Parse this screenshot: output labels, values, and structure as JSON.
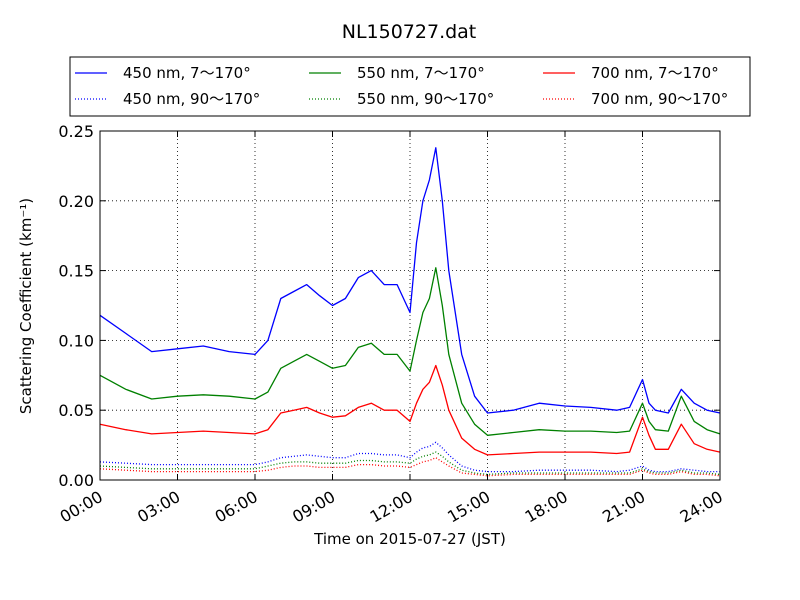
{
  "chart_data": {
    "type": "line",
    "title": "NL150727.dat",
    "xlabel": "Time on 2015-07-27 (JST)",
    "ylabel": "Scattering Coefficient (km⁻¹)",
    "xlim": [
      "00:00",
      "24:00"
    ],
    "ylim": [
      0.0,
      0.25
    ],
    "grid": true,
    "legend_position": "top",
    "x_ticks": [
      "00:00",
      "03:00",
      "06:00",
      "09:00",
      "12:00",
      "15:00",
      "18:00",
      "21:00",
      "24:00"
    ],
    "y_ticks": [
      "0.00",
      "0.05",
      "0.10",
      "0.15",
      "0.20",
      "0.25"
    ],
    "x": [
      "00:00",
      "01:00",
      "02:00",
      "03:00",
      "04:00",
      "05:00",
      "06:00",
      "06:30",
      "07:00",
      "07:30",
      "08:00",
      "08:30",
      "09:00",
      "09:30",
      "10:00",
      "10:30",
      "11:00",
      "11:30",
      "12:00",
      "12:15",
      "12:30",
      "12:45",
      "13:00",
      "13:15",
      "13:30",
      "14:00",
      "14:30",
      "15:00",
      "16:00",
      "17:00",
      "18:00",
      "19:00",
      "20:00",
      "20:30",
      "21:00",
      "21:15",
      "21:30",
      "22:00",
      "22:30",
      "23:00",
      "23:30",
      "24:00"
    ],
    "series": [
      {
        "name": "450 nm, 7～170°",
        "color": "#0000ff",
        "style": "solid",
        "values": [
          0.118,
          0.105,
          0.092,
          0.094,
          0.096,
          0.092,
          0.09,
          0.1,
          0.13,
          0.135,
          0.14,
          0.132,
          0.125,
          0.13,
          0.145,
          0.15,
          0.14,
          0.14,
          0.12,
          0.17,
          0.2,
          0.215,
          0.238,
          0.2,
          0.15,
          0.09,
          0.06,
          0.048,
          0.05,
          0.055,
          0.053,
          0.052,
          0.05,
          0.052,
          0.072,
          0.055,
          0.05,
          0.048,
          0.065,
          0.055,
          0.05,
          0.048
        ]
      },
      {
        "name": "450 nm, 90～170°",
        "color": "#0000ff",
        "style": "dotted",
        "values": [
          0.013,
          0.012,
          0.011,
          0.011,
          0.011,
          0.011,
          0.011,
          0.013,
          0.016,
          0.017,
          0.018,
          0.017,
          0.016,
          0.016,
          0.019,
          0.019,
          0.018,
          0.018,
          0.016,
          0.02,
          0.023,
          0.024,
          0.027,
          0.023,
          0.018,
          0.01,
          0.007,
          0.006,
          0.006,
          0.007,
          0.007,
          0.007,
          0.006,
          0.007,
          0.01,
          0.007,
          0.006,
          0.006,
          0.008,
          0.007,
          0.006,
          0.006
        ]
      },
      {
        "name": "550 nm, 7～170°",
        "color": "#008000",
        "style": "solid",
        "values": [
          0.075,
          0.065,
          0.058,
          0.06,
          0.061,
          0.06,
          0.058,
          0.063,
          0.08,
          0.085,
          0.09,
          0.085,
          0.08,
          0.082,
          0.095,
          0.098,
          0.09,
          0.09,
          0.078,
          0.1,
          0.12,
          0.13,
          0.152,
          0.125,
          0.09,
          0.055,
          0.04,
          0.032,
          0.034,
          0.036,
          0.035,
          0.035,
          0.034,
          0.035,
          0.055,
          0.042,
          0.036,
          0.035,
          0.06,
          0.042,
          0.036,
          0.033
        ]
      },
      {
        "name": "550 nm, 90～170°",
        "color": "#008000",
        "style": "dotted",
        "values": [
          0.01,
          0.009,
          0.008,
          0.008,
          0.008,
          0.008,
          0.008,
          0.01,
          0.012,
          0.013,
          0.013,
          0.012,
          0.012,
          0.012,
          0.014,
          0.014,
          0.013,
          0.013,
          0.012,
          0.015,
          0.017,
          0.018,
          0.02,
          0.017,
          0.013,
          0.007,
          0.005,
          0.004,
          0.005,
          0.005,
          0.005,
          0.005,
          0.005,
          0.005,
          0.008,
          0.006,
          0.005,
          0.005,
          0.007,
          0.005,
          0.005,
          0.004
        ]
      },
      {
        "name": "700 nm, 7～170°",
        "color": "#ff0000",
        "style": "solid",
        "values": [
          0.04,
          0.036,
          0.033,
          0.034,
          0.035,
          0.034,
          0.033,
          0.036,
          0.048,
          0.05,
          0.052,
          0.048,
          0.045,
          0.046,
          0.052,
          0.055,
          0.05,
          0.05,
          0.042,
          0.055,
          0.065,
          0.07,
          0.082,
          0.068,
          0.05,
          0.03,
          0.022,
          0.018,
          0.019,
          0.02,
          0.02,
          0.02,
          0.019,
          0.02,
          0.045,
          0.032,
          0.022,
          0.022,
          0.04,
          0.026,
          0.022,
          0.02
        ]
      },
      {
        "name": "700 nm, 90～170°",
        "color": "#ff0000",
        "style": "dotted",
        "values": [
          0.008,
          0.007,
          0.006,
          0.006,
          0.006,
          0.006,
          0.006,
          0.007,
          0.009,
          0.01,
          0.01,
          0.009,
          0.009,
          0.009,
          0.011,
          0.011,
          0.01,
          0.01,
          0.009,
          0.011,
          0.013,
          0.014,
          0.016,
          0.013,
          0.01,
          0.005,
          0.004,
          0.003,
          0.004,
          0.004,
          0.004,
          0.004,
          0.004,
          0.004,
          0.007,
          0.005,
          0.004,
          0.004,
          0.006,
          0.004,
          0.004,
          0.003
        ]
      }
    ]
  }
}
